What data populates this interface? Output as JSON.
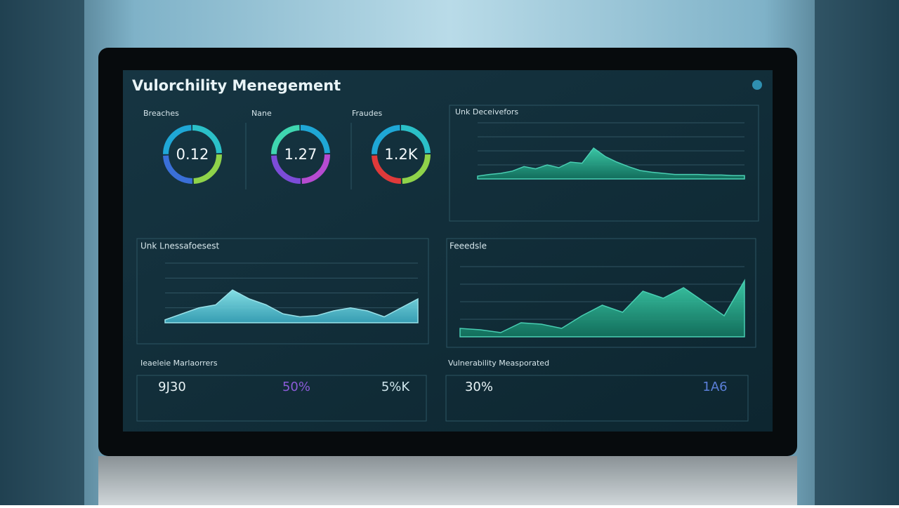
{
  "header": {
    "title": "Vulorchility Menegement"
  },
  "gauges": [
    {
      "label": "Breaches",
      "value_text": "0.12"
    },
    {
      "label": "Nane",
      "value_text": "1.27"
    },
    {
      "label": "Fraudes",
      "value_text": "1.2K"
    }
  ],
  "trend": {
    "title": "Unk Deceivefors",
    "values": [
      5,
      8,
      10,
      14,
      22,
      18,
      25,
      20,
      30,
      28,
      55,
      40,
      30,
      22,
      15,
      12,
      10,
      8,
      8,
      8,
      7,
      7,
      6,
      6
    ]
  },
  "panel_left": {
    "title": "Unk Lnessafoesest",
    "values": [
      5,
      15,
      25,
      30,
      55,
      40,
      30,
      15,
      10,
      12,
      20,
      25,
      20,
      10,
      25,
      40
    ]
  },
  "panel_right": {
    "title": "Feeedsle",
    "values": [
      12,
      10,
      6,
      20,
      18,
      12,
      30,
      45,
      35,
      65,
      55,
      70,
      50,
      30,
      80
    ]
  },
  "stats_left": {
    "title": "Ieaeleie Marlaorrers",
    "items": [
      "9J30",
      "50%",
      "5%K"
    ]
  },
  "stats_right": {
    "title": "Vulnerability Measporated",
    "items": [
      "30%",
      "1A6"
    ]
  }
}
